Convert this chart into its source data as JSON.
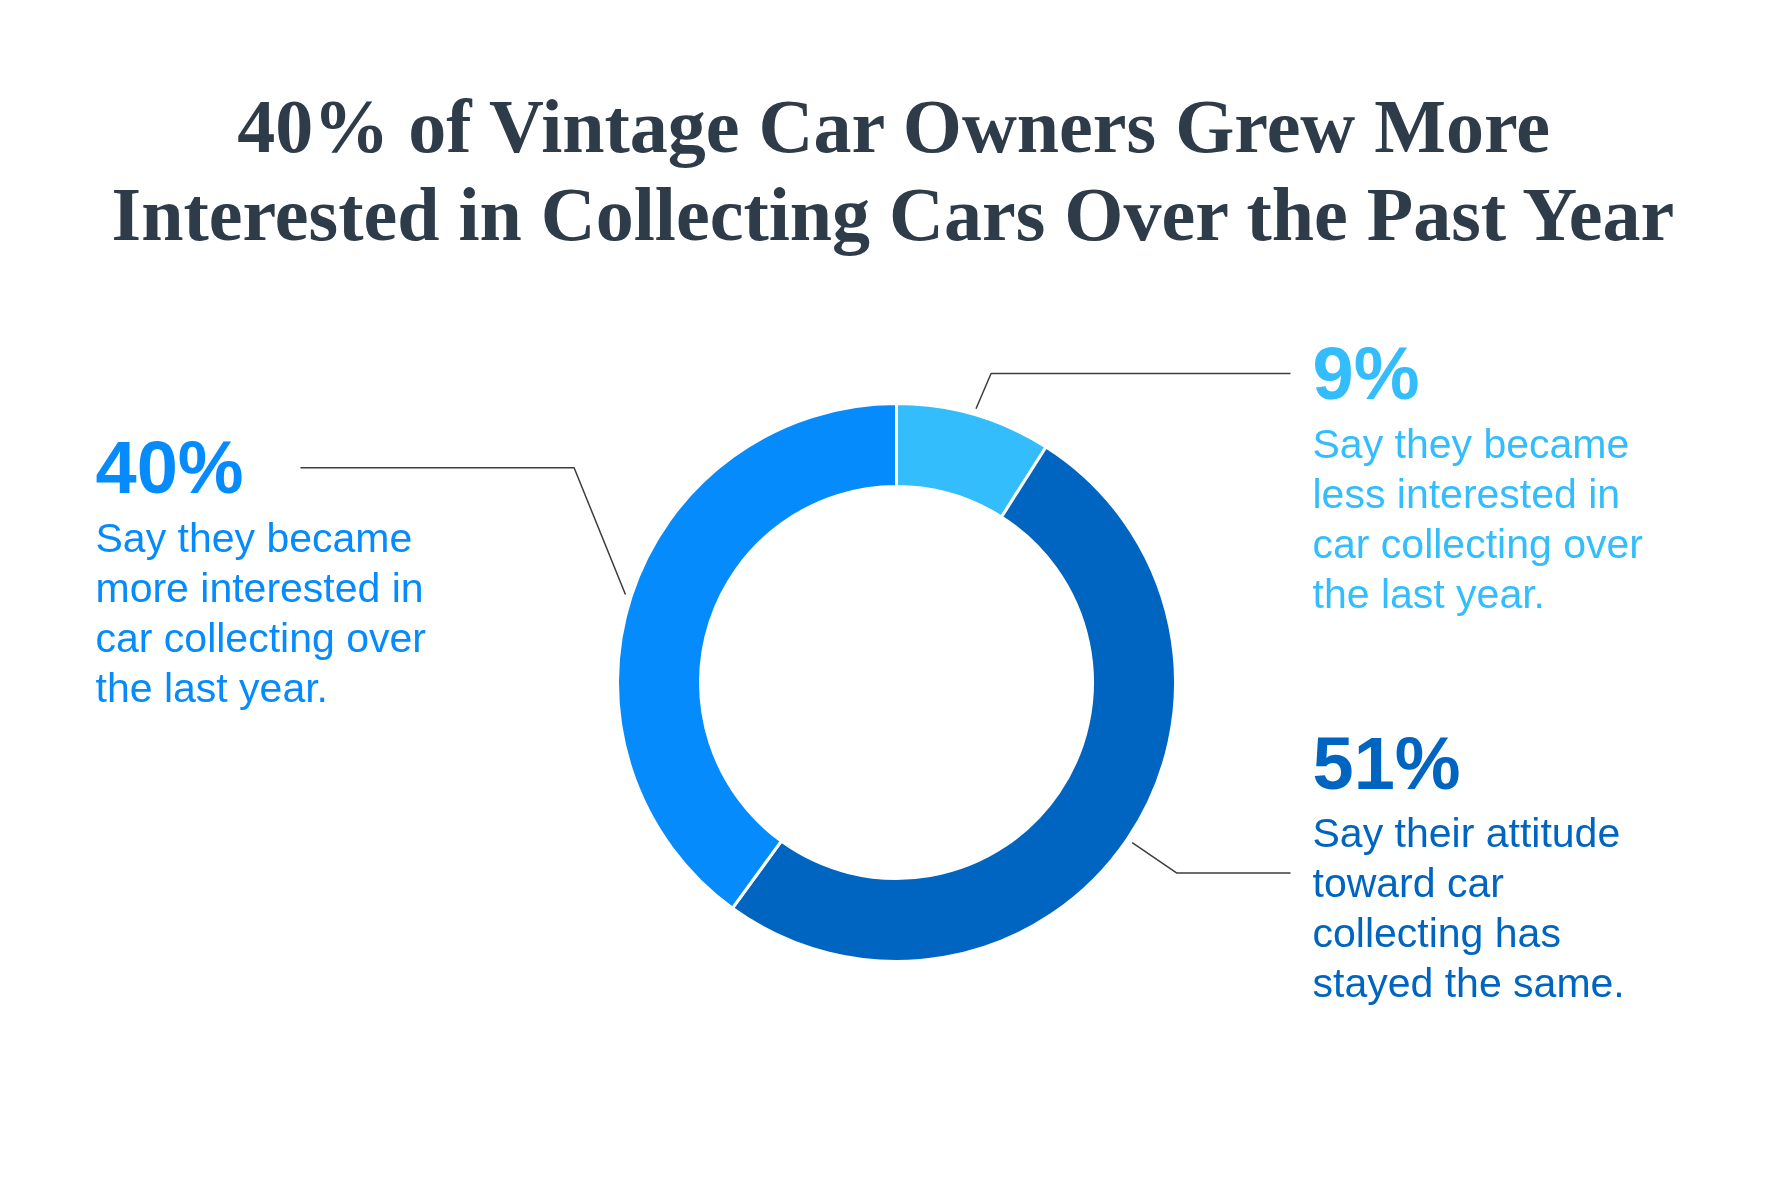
{
  "chart_data": {
    "type": "donut",
    "title": "40% of Vintage Car Owners Grew More Interested in Collecting Cars Over the Past Year",
    "categories": [
      "Say they became less interested in car collecting over the last year.",
      "Say their attitude toward car collecting has stayed the same.",
      "Say they became more interested in car collecting over the last year."
    ],
    "values": [
      9,
      51,
      40
    ],
    "colors": [
      "#33bdfd",
      "#0065c1",
      "#068bfd"
    ],
    "value_labels": [
      "9%",
      "51%",
      "40%"
    ]
  }
}
